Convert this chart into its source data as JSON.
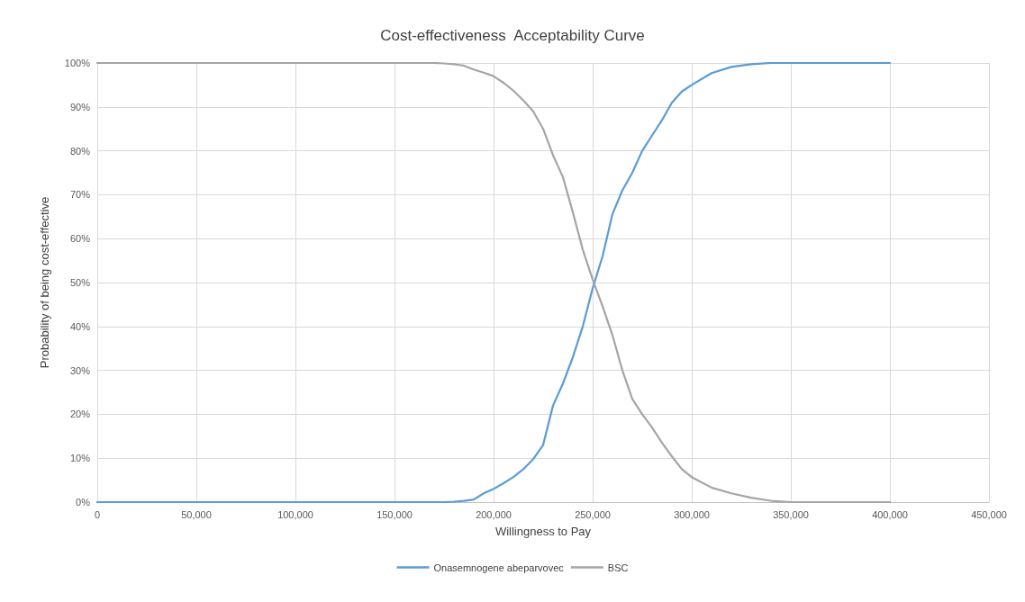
{
  "chart_data": {
    "type": "line",
    "title": "Cost-effectiveness  Acceptability Curve",
    "xlabel": "Willingness to Pay",
    "ylabel": "Probability of being cost-effective",
    "x": [
      0,
      50000,
      100000,
      150000,
      170000,
      175000,
      180000,
      185000,
      190000,
      195000,
      200000,
      205000,
      210000,
      215000,
      220000,
      225000,
      230000,
      235000,
      240000,
      245000,
      250000,
      255000,
      260000,
      265000,
      270000,
      275000,
      280000,
      285000,
      290000,
      295000,
      300000,
      310000,
      320000,
      330000,
      340000,
      350000,
      400000
    ],
    "series": [
      {
        "name": "Onasemnogene abeparvovec",
        "color": "#5b9bd5",
        "values": [
          0,
          0,
          0,
          0,
          0,
          0,
          0.1,
          0.3,
          0.6,
          2,
          3,
          4.3,
          5.7,
          7.5,
          9.8,
          13,
          22,
          27,
          33,
          40,
          48.7,
          56,
          65.6,
          71,
          75,
          80,
          83.5,
          87,
          91,
          93.5,
          95,
          97.7,
          99.1,
          99.7,
          100,
          100,
          100
        ]
      },
      {
        "name": "BSC",
        "color": "#a5a5a5",
        "values": [
          100,
          100,
          100,
          100,
          100,
          99.9,
          99.7,
          99.4,
          98.5,
          97.8,
          97,
          95.5,
          93.7,
          91.5,
          89,
          85,
          79,
          74,
          66,
          57.5,
          50.7,
          44.6,
          38,
          30,
          23.5,
          20,
          17,
          13.5,
          10.4,
          7.5,
          5.7,
          3.3,
          2,
          1,
          0.3,
          0,
          0
        ]
      }
    ],
    "xlim": [
      0,
      450000
    ],
    "xticks": [
      {
        "value": 0,
        "label": "0"
      },
      {
        "value": 50000,
        "label": "50,000"
      },
      {
        "value": 100000,
        "label": "100,000"
      },
      {
        "value": 150000,
        "label": "150,000"
      },
      {
        "value": 200000,
        "label": "200,000"
      },
      {
        "value": 250000,
        "label": "250,000"
      },
      {
        "value": 300000,
        "label": "300,000"
      },
      {
        "value": 350000,
        "label": "350,000"
      },
      {
        "value": 400000,
        "label": "400,000"
      },
      {
        "value": 450000,
        "label": "450,000"
      }
    ],
    "ylim": [
      0,
      100
    ],
    "yticks": [
      {
        "value": 0,
        "label": "0%"
      },
      {
        "value": 10,
        "label": "10%"
      },
      {
        "value": 20,
        "label": "20%"
      },
      {
        "value": 30,
        "label": "30%"
      },
      {
        "value": 40,
        "label": "40%"
      },
      {
        "value": 50,
        "label": "50%"
      },
      {
        "value": 60,
        "label": "60%"
      },
      {
        "value": 70,
        "label": "70%"
      },
      {
        "value": 80,
        "label": "80%"
      },
      {
        "value": 90,
        "label": "90%"
      },
      {
        "value": 100,
        "label": "100%"
      }
    ],
    "grid": true,
    "legend": "bottom",
    "marker": "none",
    "line_style": "solid"
  }
}
